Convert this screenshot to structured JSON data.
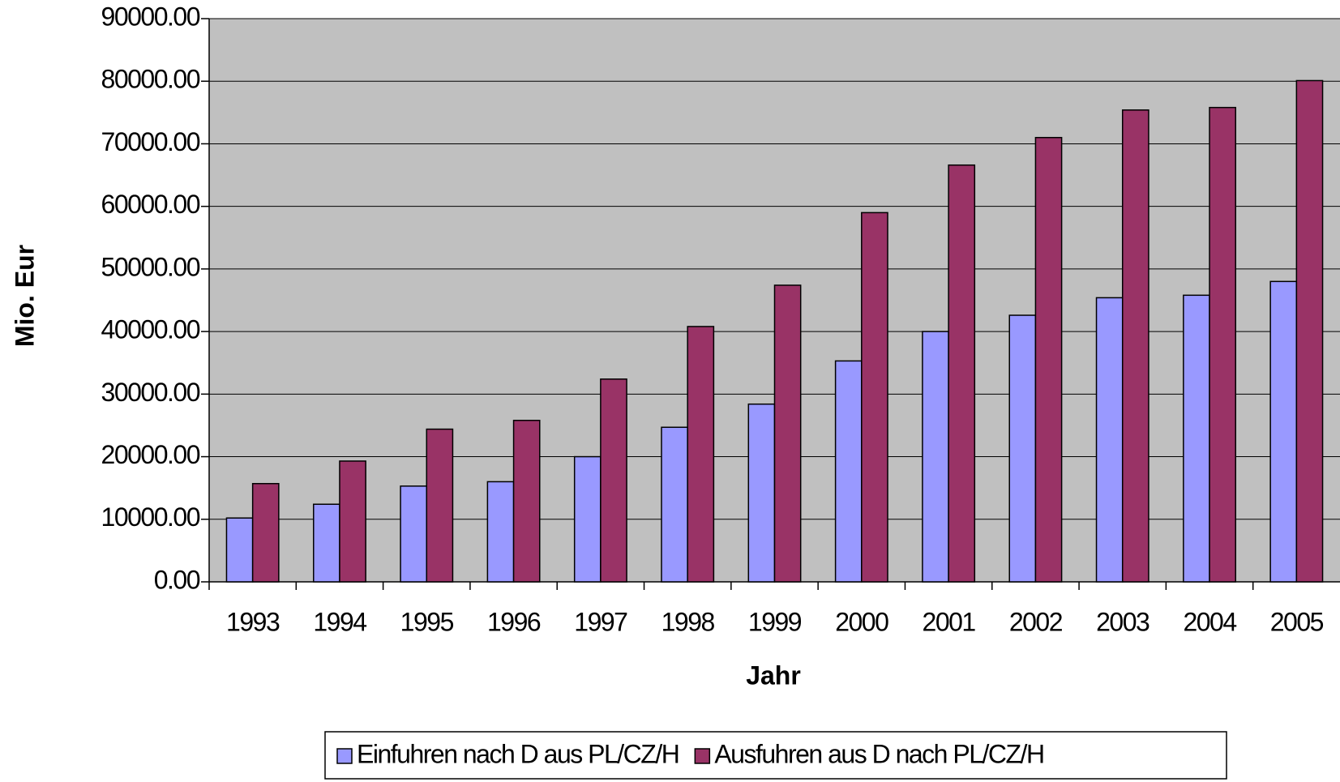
{
  "chart_data": {
    "type": "bar",
    "y_label": "Mio. Eur",
    "x_label": "Jahr",
    "categories": [
      "1993",
      "1994",
      "1995",
      "1996",
      "1997",
      "1998",
      "1999",
      "2000",
      "2001",
      "2002",
      "2003",
      "2004",
      "2005"
    ],
    "series": [
      {
        "name": "Einfuhren nach D aus PL/CZ/H",
        "color": "#9999ff",
        "values": [
          10200,
          12400,
          15300,
          16000,
          20000,
          24700,
          28400,
          35300,
          40000,
          42600,
          45400,
          45800,
          48000
        ]
      },
      {
        "name": "Ausfuhren aus D nach PL/CZ/H",
        "color": "#993366",
        "values": [
          15700,
          19300,
          24400,
          25800,
          32400,
          40800,
          47400,
          59000,
          66600,
          71000,
          75400,
          75800,
          80100
        ]
      }
    ],
    "ylim": [
      0,
      90000
    ],
    "yticks": [
      {
        "value": 0,
        "label": "0.00"
      },
      {
        "value": 10000,
        "label": "10000.00"
      },
      {
        "value": 20000,
        "label": "20000.00"
      },
      {
        "value": 30000,
        "label": "30000.00"
      },
      {
        "value": 40000,
        "label": "40000.00"
      },
      {
        "value": 50000,
        "label": "50000.00"
      },
      {
        "value": 60000,
        "label": "60000.00"
      },
      {
        "value": 70000,
        "label": "70000.00"
      },
      {
        "value": 80000,
        "label": "80000.00"
      },
      {
        "value": 90000,
        "label": "90000.00"
      }
    ],
    "grid": true,
    "plot_background": "#c0c0c0",
    "legend": "bottom"
  }
}
